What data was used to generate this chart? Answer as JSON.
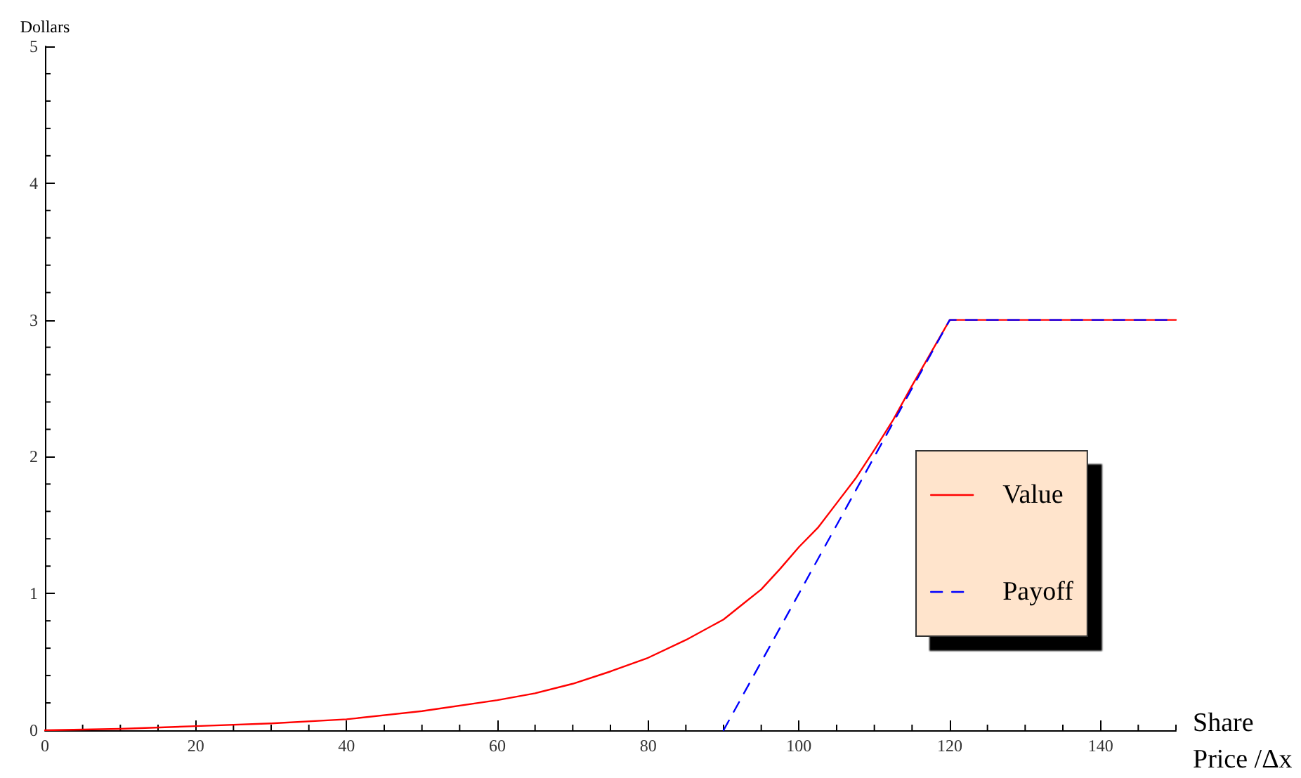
{
  "chart_data": {
    "type": "line",
    "xlabel": "Share\nPrice /Δx",
    "ylabel": "Dollars",
    "xlim": [
      0,
      150
    ],
    "xticks": [
      0,
      20,
      40,
      60,
      80,
      100,
      120,
      140
    ],
    "ylim": [
      0,
      5
    ],
    "yticks": [
      0,
      1,
      2,
      3,
      4,
      5
    ],
    "grid": false,
    "legend": "right",
    "marker": "none",
    "series": [
      {
        "name": "Value",
        "color": "#ff0000",
        "line_style": "solid",
        "x": [
          0,
          10,
          20,
          30,
          40,
          50,
          60,
          65,
          70,
          75,
          80,
          85,
          90,
          92.5,
          95,
          97.5,
          100,
          102.5,
          105,
          107.5,
          110,
          112.5,
          115,
          117.5,
          120,
          150
        ],
        "values": [
          0,
          0.01,
          0.03,
          0.05,
          0.08,
          0.14,
          0.22,
          0.27,
          0.34,
          0.43,
          0.53,
          0.66,
          0.81,
          0.92,
          1.03,
          1.18,
          1.34,
          1.48,
          1.66,
          1.84,
          2.05,
          2.27,
          2.52,
          2.76,
          3,
          3
        ]
      },
      {
        "name": "Payoff",
        "color": "#0000ff",
        "line_style": "dashed",
        "x": [
          90,
          120,
          150
        ],
        "values": [
          0,
          3,
          3
        ]
      }
    ]
  }
}
